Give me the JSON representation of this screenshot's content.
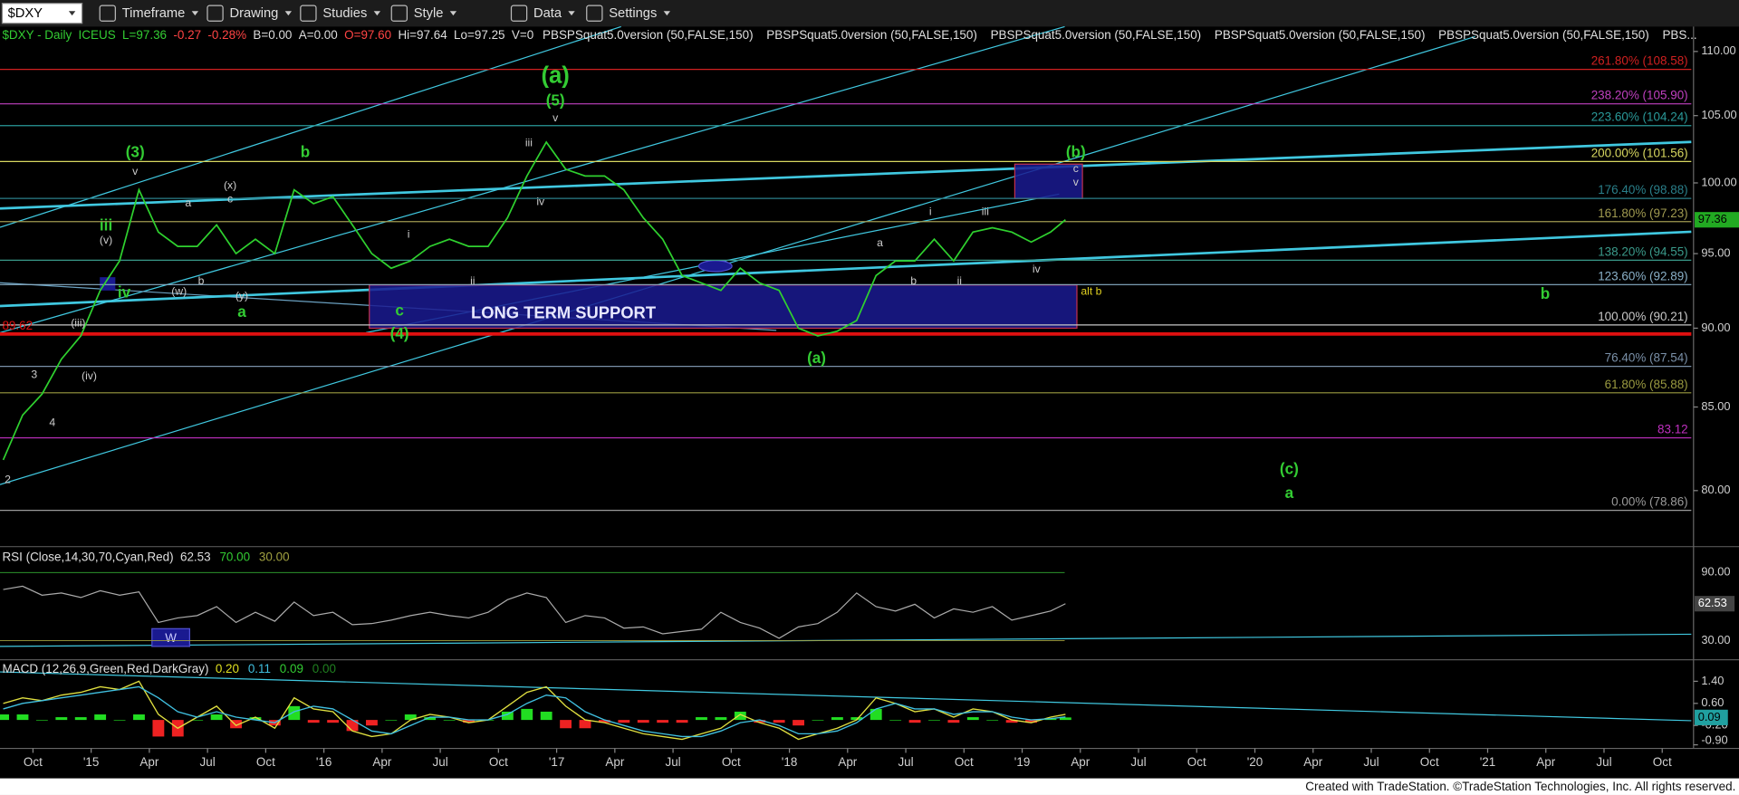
{
  "toolbar": {
    "symbol": "$DXY",
    "menus": [
      "Timeframe",
      "Drawing",
      "Studies",
      "Style",
      "Data",
      "Settings"
    ]
  },
  "chart_data": {
    "type": "line",
    "header": [
      {
        "text": "$DXY - Daily",
        "color": "#33cc33"
      },
      {
        "text": "ICEUS",
        "color": "#33cc33"
      },
      {
        "text": "L=97.36",
        "color": "#33cc33"
      },
      {
        "text": "-0.27",
        "color": "#ff4444"
      },
      {
        "text": "-0.28%",
        "color": "#ff4444"
      },
      {
        "text": "B=0.00",
        "color": "#dddddd"
      },
      {
        "text": "A=0.00",
        "color": "#dddddd"
      },
      {
        "text": "O=97.60",
        "color": "#ff4444"
      },
      {
        "text": "Hi=97.64",
        "color": "#dddddd"
      },
      {
        "text": "Lo=97.25",
        "color": "#dddddd"
      },
      {
        "text": "V=0",
        "color": "#dddddd"
      }
    ],
    "indicators": [
      "PBSPSquat5.0version (50,FALSE,150)",
      "PBSPSquat5.0version (50,FALSE,150)",
      "PBSPSquat5.0version (50,FALSE,150)",
      "PBSPSquat5.0version (50,FALSE,150)",
      "PBSPSquat5.0version (50,FALSE,150)",
      "PBS..."
    ],
    "x": [
      "2014-08-15",
      "2014-09-15",
      "2014-10-15",
      "2014-11-15",
      "2014-12-15",
      "2015-01-15",
      "2015-02-15",
      "2015-03-15",
      "2015-04-15",
      "2015-05-15",
      "2015-06-15",
      "2015-07-15",
      "2015-08-15",
      "2015-09-15",
      "2015-10-15",
      "2015-11-15",
      "2015-12-15",
      "2016-01-15",
      "2016-02-15",
      "2016-03-15",
      "2016-04-15",
      "2016-05-15",
      "2016-06-15",
      "2016-07-15",
      "2016-08-15",
      "2016-09-15",
      "2016-10-15",
      "2016-11-15",
      "2016-12-15",
      "2017-01-15",
      "2017-02-15",
      "2017-03-15",
      "2017-04-15",
      "2017-05-15",
      "2017-06-15",
      "2017-07-15",
      "2017-08-15",
      "2017-09-15",
      "2017-10-15",
      "2017-11-15",
      "2017-12-15",
      "2018-01-15",
      "2018-02-15",
      "2018-03-15",
      "2018-04-15",
      "2018-05-15",
      "2018-06-15",
      "2018-07-15",
      "2018-08-15",
      "2018-09-15",
      "2018-10-15",
      "2018-11-15",
      "2018-12-15",
      "2019-01-15",
      "2019-02-15",
      "2019-03-08"
    ],
    "values": [
      81.8,
      84.5,
      85.8,
      88,
      89.5,
      92.5,
      94.5,
      99.5,
      96.5,
      95.5,
      95.5,
      97,
      95,
      96,
      95,
      99.5,
      98.5,
      99,
      97,
      95,
      94,
      94.5,
      95.5,
      96,
      95.5,
      95.5,
      97.5,
      100.5,
      103,
      101,
      100.5,
      100.5,
      99.5,
      97.5,
      96,
      93.5,
      93,
      92.5,
      94,
      93,
      92.5,
      90,
      89.5,
      89.8,
      90.5,
      93.5,
      94.5,
      94.5,
      96,
      94.5,
      96.5,
      96.8,
      96.5,
      95.8,
      96.5,
      97.36
    ],
    "color": "#2fd12f",
    "xlim": [
      "2014-08-10",
      "2021-11-16"
    ],
    "xticks": [
      {
        "value": "2014-10-01",
        "label": "Oct"
      },
      {
        "value": "2015-01-01",
        "label": "'15"
      },
      {
        "value": "2015-04-01",
        "label": "Apr"
      },
      {
        "value": "2015-07-01",
        "label": "Jul"
      },
      {
        "value": "2015-10-01",
        "label": "Oct"
      },
      {
        "value": "2016-01-01",
        "label": "'16"
      },
      {
        "value": "2016-04-01",
        "label": "Apr"
      },
      {
        "value": "2016-07-01",
        "label": "Jul"
      },
      {
        "value": "2016-10-01",
        "label": "Oct"
      },
      {
        "value": "2017-01-01",
        "label": "'17"
      },
      {
        "value": "2017-04-01",
        "label": "Apr"
      },
      {
        "value": "2017-07-01",
        "label": "Jul"
      },
      {
        "value": "2017-10-01",
        "label": "Oct"
      },
      {
        "value": "2018-01-01",
        "label": "'18"
      },
      {
        "value": "2018-04-01",
        "label": "Apr"
      },
      {
        "value": "2018-07-01",
        "label": "Jul"
      },
      {
        "value": "2018-10-01",
        "label": "Oct"
      },
      {
        "value": "2019-01-01",
        "label": "'19"
      },
      {
        "value": "2019-04-01",
        "label": "Apr"
      },
      {
        "value": "2019-07-01",
        "label": "Jul"
      },
      {
        "value": "2019-10-01",
        "label": "Oct"
      },
      {
        "value": "2020-01-01",
        "label": "'20"
      },
      {
        "value": "2020-04-01",
        "label": "Apr"
      },
      {
        "value": "2020-07-01",
        "label": "Jul"
      },
      {
        "value": "2020-10-01",
        "label": "Oct"
      },
      {
        "value": "2021-01-01",
        "label": "'21"
      },
      {
        "value": "2021-04-01",
        "label": "Apr"
      },
      {
        "value": "2021-07-01",
        "label": "Jul"
      },
      {
        "value": "2021-10-01",
        "label": "Oct"
      }
    ],
    "ylim": [
      77,
      112
    ],
    "log_scale": true,
    "yticks": [
      {
        "value": 80,
        "label": "80.00"
      },
      {
        "value": 85,
        "label": "85.00"
      },
      {
        "value": 90,
        "label": "90.00"
      },
      {
        "value": 95,
        "label": "95.00"
      },
      {
        "value": 100,
        "label": "100.00"
      },
      {
        "value": 105,
        "label": "105.00"
      },
      {
        "value": 110,
        "label": "110.00"
      }
    ],
    "levels": [
      {
        "value": 108.58,
        "label": "261.80% (108.58)",
        "color": "#d02020"
      },
      {
        "value": 105.9,
        "label": "238.20% (105.90)",
        "color": "#c040c0"
      },
      {
        "value": 104.24,
        "label": "223.60% (104.24)",
        "color": "#2a9a9a"
      },
      {
        "value": 101.56,
        "label": "200.00% (101.56)",
        "color": "#d8d860"
      },
      {
        "value": 98.88,
        "label": "176.40% (98.88)",
        "color": "#2a7f8a"
      },
      {
        "value": 97.23,
        "label": "161.80% (97.23)",
        "color": "#a09a50"
      },
      {
        "value": 94.55,
        "label": "138.20% (94.55)",
        "color": "#3a9a8a"
      },
      {
        "value": 92.89,
        "label": "123.60% (92.89)",
        "color": "#8ab0c8"
      },
      {
        "value": 90.21,
        "label": "100.00% (90.21)",
        "color": "#c8c8c8"
      },
      {
        "value": 89.62,
        "color": "#e01010",
        "emphasis": true
      },
      {
        "value": 87.54,
        "label": "76.40% (87.54)",
        "color": "#7a90a8"
      },
      {
        "value": 85.88,
        "label": "61.80% (85.88)",
        "color": "#9a9a40"
      },
      {
        "value": 83.12,
        "color": "#c030c0"
      },
      {
        "value": 78.86,
        "label": "0.00% (78.86)",
        "color": "#9a9a9a"
      }
    ],
    "support_label": "LONG TERM SUPPORT",
    "annotations": [
      {
        "x": "2016-12-29",
        "y": 108.0,
        "text": "(a)",
        "color": "#33cc33",
        "size": "large"
      },
      {
        "x": "2016-12-29",
        "y": 106.1,
        "text": "(5)",
        "color": "#33cc33",
        "size": "medium"
      },
      {
        "x": "2016-12-29",
        "y": 104.8,
        "text": "v",
        "color": "#cccccc",
        "size": "small"
      },
      {
        "x": "2015-03-09",
        "y": 102.2,
        "text": "(3)",
        "color": "#33cc33",
        "size": "medium"
      },
      {
        "x": "2015-03-09",
        "y": 100.8,
        "text": "v",
        "color": "#cccccc",
        "size": "small"
      },
      {
        "x": "2015-12-02",
        "y": 102.2,
        "text": "b",
        "color": "#33cc33",
        "size": "medium"
      },
      {
        "x": "2015-01-24",
        "y": 96.9,
        "text": "iii",
        "color": "#33cc33",
        "size": "medium"
      },
      {
        "x": "2015-01-24",
        "y": 95.9,
        "text": "(v)",
        "color": "#cccccc",
        "size": "small"
      },
      {
        "x": "2015-02-22",
        "y": 92.3,
        "text": "iv",
        "color": "#33cc33",
        "size": "medium"
      },
      {
        "x": "2014-12-11",
        "y": 90.3,
        "text": "(iii)",
        "color": "#cccccc",
        "size": "small"
      },
      {
        "x": "2014-12-28",
        "y": 86.9,
        "text": "(iv)",
        "color": "#cccccc",
        "size": "small"
      },
      {
        "x": "2014-10-03",
        "y": 87.0,
        "text": "3",
        "color": "#cccccc",
        "size": "small"
      },
      {
        "x": "2014-10-31",
        "y": 84.0,
        "text": "4",
        "color": "#cccccc",
        "size": "small"
      },
      {
        "x": "2014-08-22",
        "y": 80.6,
        "text": "2",
        "color": "#cccccc",
        "size": "small"
      },
      {
        "x": "2015-05-31",
        "y": 98.5,
        "text": "a",
        "color": "#cccccc",
        "size": "small"
      },
      {
        "x": "2015-05-17",
        "y": 92.4,
        "text": "(w)",
        "color": "#cccccc",
        "size": "small"
      },
      {
        "x": "2015-06-21",
        "y": 93.1,
        "text": "b",
        "color": "#cccccc",
        "size": "small"
      },
      {
        "x": "2015-08-06",
        "y": 99.8,
        "text": "(x)",
        "color": "#cccccc",
        "size": "small"
      },
      {
        "x": "2015-08-06",
        "y": 98.8,
        "text": "c",
        "color": "#cccccc",
        "size": "small"
      },
      {
        "x": "2015-08-24",
        "y": 92.1,
        "text": "(y)",
        "color": "#cccccc",
        "size": "small"
      },
      {
        "x": "2015-08-24",
        "y": 91.0,
        "text": "a",
        "color": "#33cc33",
        "size": "medium"
      },
      {
        "x": "2016-04-28",
        "y": 91.1,
        "text": "c",
        "color": "#33cc33",
        "size": "medium"
      },
      {
        "x": "2016-04-28",
        "y": 89.6,
        "text": "(4)",
        "color": "#33cc33",
        "size": "medium"
      },
      {
        "x": "2016-05-12",
        "y": 96.3,
        "text": "i",
        "color": "#cccccc",
        "size": "small"
      },
      {
        "x": "2016-08-21",
        "y": 93.1,
        "text": "ii",
        "color": "#cccccc",
        "size": "small"
      },
      {
        "x": "2016-11-18",
        "y": 102.9,
        "text": "iii",
        "color": "#cccccc",
        "size": "small"
      },
      {
        "x": "2016-12-06",
        "y": 98.6,
        "text": "iv",
        "color": "#cccccc",
        "size": "small"
      },
      {
        "x": "2018-02-13",
        "y": 88.0,
        "text": "(a)",
        "color": "#33cc33",
        "size": "medium"
      },
      {
        "x": "2018-05-21",
        "y": 95.7,
        "text": "a",
        "color": "#cccccc",
        "size": "small"
      },
      {
        "x": "2018-07-13",
        "y": 93.1,
        "text": "b",
        "color": "#cccccc",
        "size": "small"
      },
      {
        "x": "2018-08-09",
        "y": 97.9,
        "text": "i",
        "color": "#cccccc",
        "size": "small"
      },
      {
        "x": "2018-09-24",
        "y": 93.1,
        "text": "ii",
        "color": "#cccccc",
        "size": "small"
      },
      {
        "x": "2018-11-04",
        "y": 97.9,
        "text": "iii",
        "color": "#cccccc",
        "size": "small"
      },
      {
        "x": "2019-01-23",
        "y": 93.9,
        "text": "iv",
        "color": "#cccccc",
        "size": "small"
      },
      {
        "x": "2019-03-24",
        "y": 102.2,
        "text": "(b)",
        "color": "#33cc33",
        "size": "medium"
      },
      {
        "x": "2019-03-24",
        "y": 101.0,
        "text": "c",
        "color": "#cccccc",
        "size": "small"
      },
      {
        "x": "2019-03-24",
        "y": 100.0,
        "text": "v",
        "color": "#cccccc",
        "size": "small"
      },
      {
        "x": "2019-04-18",
        "y": 92.4,
        "text": "alt b",
        "color": "#e0d020",
        "size": "small"
      },
      {
        "x": "2021-03-30",
        "y": 92.2,
        "text": "b",
        "color": "#33cc33",
        "size": "medium"
      },
      {
        "x": "2020-02-24",
        "y": 81.2,
        "text": "(c)",
        "color": "#33cc33",
        "size": "medium"
      },
      {
        "x": "2020-02-24",
        "y": 79.8,
        "text": "a",
        "color": "#33cc33",
        "size": "medium"
      }
    ],
    "rsi": {
      "title": "RSI (Close,14,30,70,Cyan,Red)",
      "readouts": [
        {
          "text": "62.53",
          "color": "#dddddd"
        },
        {
          "text": "70.00",
          "color": "#33cc33"
        },
        {
          "text": "30.00",
          "color": "#a0a040"
        }
      ],
      "marker": "W",
      "values": [
        75,
        78,
        70,
        72,
        68,
        74,
        70,
        73,
        46,
        50,
        52,
        60,
        46,
        55,
        47,
        64,
        52,
        55,
        44,
        45,
        48,
        52,
        55,
        52,
        50,
        55,
        66,
        72,
        68,
        46,
        52,
        50,
        41,
        42,
        36,
        38,
        40,
        55,
        46,
        41,
        32,
        42,
        45,
        55,
        72,
        60,
        56,
        62,
        50,
        58,
        55,
        60,
        48,
        52,
        56,
        62.53
      ],
      "color": "#aaaaaa",
      "ylim": [
        16,
        109
      ],
      "yticks": [
        {
          "value": 30,
          "label": "30.00"
        },
        {
          "value": 90,
          "label": "90.00"
        }
      ]
    },
    "macd": {
      "title": "MACD (12,26,9,Green,Red,DarkGray)",
      "readouts": [
        {
          "text": "0.20",
          "color": "#e0e020"
        },
        {
          "text": "0.11",
          "color": "#40c0e0"
        },
        {
          "text": "0.09",
          "color": "#33cc33"
        },
        {
          "text": "0.00",
          "color": "#208020"
        }
      ],
      "series": [
        {
          "name": "MACD",
          "color": "#e0e040",
          "values": [
            0.6,
            0.8,
            0.7,
            0.9,
            1.0,
            1.2,
            1.1,
            1.4,
            0.2,
            -0.3,
            0.1,
            0.5,
            -0.2,
            0.1,
            -0.3,
            0.8,
            0.4,
            0.3,
            -0.4,
            -0.6,
            -0.5,
            0.0,
            0.2,
            0.1,
            -0.1,
            0.0,
            0.5,
            1.0,
            1.2,
            0.5,
            0.0,
            -0.1,
            -0.3,
            -0.5,
            -0.6,
            -0.7,
            -0.5,
            -0.3,
            0.2,
            -0.1,
            -0.3,
            -0.7,
            -0.5,
            -0.3,
            0.0,
            0.8,
            0.6,
            0.3,
            0.4,
            0.1,
            0.4,
            0.3,
            0.0,
            -0.1,
            0.1,
            0.2
          ]
        },
        {
          "name": "MACDAvg",
          "color": "#40c0e0",
          "values": [
            0.4,
            0.6,
            0.7,
            0.8,
            0.9,
            1.0,
            1.1,
            1.2,
            0.8,
            0.3,
            0.1,
            0.3,
            0.1,
            0.0,
            -0.1,
            0.3,
            0.5,
            0.4,
            0.0,
            -0.4,
            -0.5,
            -0.2,
            0.1,
            0.1,
            0.0,
            0.0,
            0.2,
            0.6,
            0.9,
            0.8,
            0.3,
            0.0,
            -0.2,
            -0.4,
            -0.5,
            -0.6,
            -0.6,
            -0.4,
            -0.1,
            0.0,
            -0.2,
            -0.5,
            -0.5,
            -0.4,
            -0.1,
            0.4,
            0.6,
            0.4,
            0.4,
            0.2,
            0.3,
            0.3,
            0.1,
            0.0,
            0.05,
            0.11
          ]
        }
      ],
      "hist": [
        0.2,
        0.2,
        0,
        0.1,
        0.1,
        0.2,
        0,
        0.2,
        -0.6,
        -0.6,
        0,
        0.2,
        -0.3,
        0.1,
        -0.2,
        0.5,
        -0.1,
        -0.1,
        -0.4,
        -0.2,
        0,
        0.2,
        0.1,
        0,
        -0.1,
        0,
        0.3,
        0.4,
        0.3,
        -0.3,
        -0.3,
        -0.1,
        -0.1,
        -0.1,
        -0.1,
        -0.1,
        0.1,
        0.1,
        0.3,
        -0.1,
        -0.1,
        -0.2,
        0,
        0.1,
        0.1,
        0.4,
        0,
        -0.1,
        0,
        -0.1,
        0.1,
        0,
        -0.1,
        -0.1,
        0.05,
        0.09
      ],
      "hist_colors": [
        "#22dd22",
        "#ee2222"
      ],
      "ylim": [
        -0.95,
        2.1
      ],
      "yticks": [
        {
          "value": 1.4,
          "label": "1.40"
        },
        {
          "value": 0.6,
          "label": "0.60"
        },
        {
          "value": -0.2,
          "label": "-0.20"
        },
        {
          "value": -0.9,
          "label": "-0.90"
        }
      ]
    }
  },
  "footer": "Created with TradeStation. ©TradeStation Technologies, Inc. All rights reserved."
}
